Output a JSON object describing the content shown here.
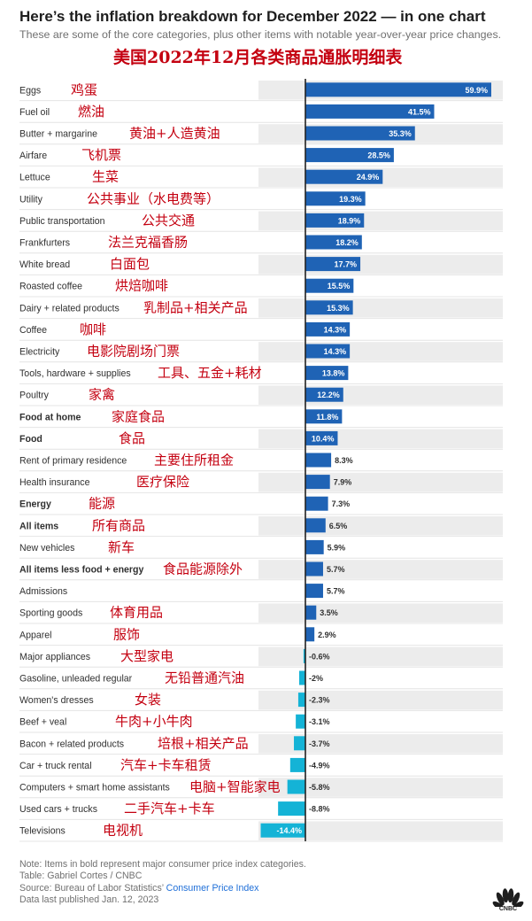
{
  "header": {
    "title": "Here’s the inflation breakdown for December 2022 — in one chart",
    "subtitle": "These are some of the core categories, plus other items with notable year-over-year price changes.",
    "annotation_cn": "美国2022年12月各类商品通胀明细表"
  },
  "chart_data": {
    "type": "bar",
    "orientation": "horizontal",
    "unit": "%",
    "bar_color_positive": "#1f63b5",
    "bar_color_negative": "#14b3d6",
    "row_shading_color": "#ececec",
    "annotation_color": "#c40010",
    "xlim": [
      -15,
      62
    ],
    "grid": false,
    "categories": [
      "Eggs",
      "Fuel oil",
      "Butter + margarine",
      "Airfare",
      "Lettuce",
      "Utility",
      "Public transportation",
      "Frankfurters",
      "White bread",
      "Roasted coffee",
      "Dairy + related products",
      "Coffee",
      "Electricity",
      "Tools, hardware + supplies",
      "Poultry",
      "Food at home",
      "Food",
      "Rent of primary residence",
      "Health insurance",
      "Energy",
      "All items",
      "New vehicles",
      "All items less food + energy",
      "Admissions",
      "Sporting goods",
      "Apparel",
      "Major appliances",
      "Gasoline, unleaded regular",
      "Women's dresses",
      "Beef + veal",
      "Bacon + related products",
      "Car + truck rental",
      "Computers + smart home assistants",
      "Used cars + trucks",
      "Televisions"
    ],
    "values": [
      59.9,
      41.5,
      35.3,
      28.5,
      24.9,
      19.3,
      18.9,
      18.2,
      17.7,
      15.5,
      15.3,
      14.3,
      14.3,
      13.8,
      12.2,
      11.8,
      10.4,
      8.3,
      7.9,
      7.3,
      6.5,
      5.9,
      5.7,
      5.7,
      3.5,
      2.9,
      -0.6,
      -2,
      -2.3,
      -3.1,
      -3.7,
      -4.9,
      -5.8,
      -8.8,
      -14.4
    ],
    "value_labels": [
      "59.9%",
      "41.5%",
      "35.3%",
      "28.5%",
      "24.9%",
      "19.3%",
      "18.9%",
      "18.2%",
      "17.7%",
      "15.5%",
      "15.3%",
      "14.3%",
      "14.3%",
      "13.8%",
      "12.2%",
      "11.8%",
      "10.4%",
      "8.3%",
      "7.9%",
      "7.3%",
      "6.5%",
      "5.9%",
      "5.7%",
      "5.7%",
      "3.5%",
      "2.9%",
      "-0.6%",
      "-2%",
      "-2.3%",
      "-3.1%",
      "-3.7%",
      "-4.9%",
      "-5.8%",
      "-8.8%",
      "-14.4%"
    ],
    "bold": [
      false,
      false,
      false,
      false,
      false,
      false,
      false,
      false,
      false,
      false,
      false,
      false,
      false,
      false,
      false,
      true,
      true,
      false,
      false,
      true,
      true,
      false,
      true,
      false,
      false,
      false,
      false,
      false,
      false,
      false,
      false,
      false,
      false,
      false,
      false
    ],
    "annotations_cn": [
      "鸡蛋",
      "燃油",
      "黄油+人造黄油",
      "飞机票",
      "生菜",
      "公共事业（水电费等）",
      "公共交通",
      "法兰克福香肠",
      "白面包",
      "烘焙咖啡",
      "乳制品+相关产品",
      "咖啡",
      "电影院剧场门票",
      "工具、五金+耗材",
      "家禽",
      "家庭食品",
      "食品",
      "主要住所租金",
      "医疗保险",
      "能源",
      "所有商品",
      "新车",
      "食品能源除外",
      "",
      "体育用品",
      "服饰",
      "大型家电",
      "无铅普通汽油",
      "女装",
      "牛肉+小牛肉",
      "培根+相关产品",
      "汽车+卡车租赁",
      "电脑+智能家电",
      "二手汽车+卡车",
      "电视机"
    ]
  },
  "footer": {
    "note": "Note: Items in bold represent major consumer price index categories.",
    "table_credit": "Table: Gabriel Cortes / CNBC",
    "source_prefix": "Source: Bureau of Labor Statistics’ ",
    "source_link": "Consumer Price Index",
    "published": "Data last published Jan. 12, 2023",
    "logo_text": "CNBC"
  }
}
